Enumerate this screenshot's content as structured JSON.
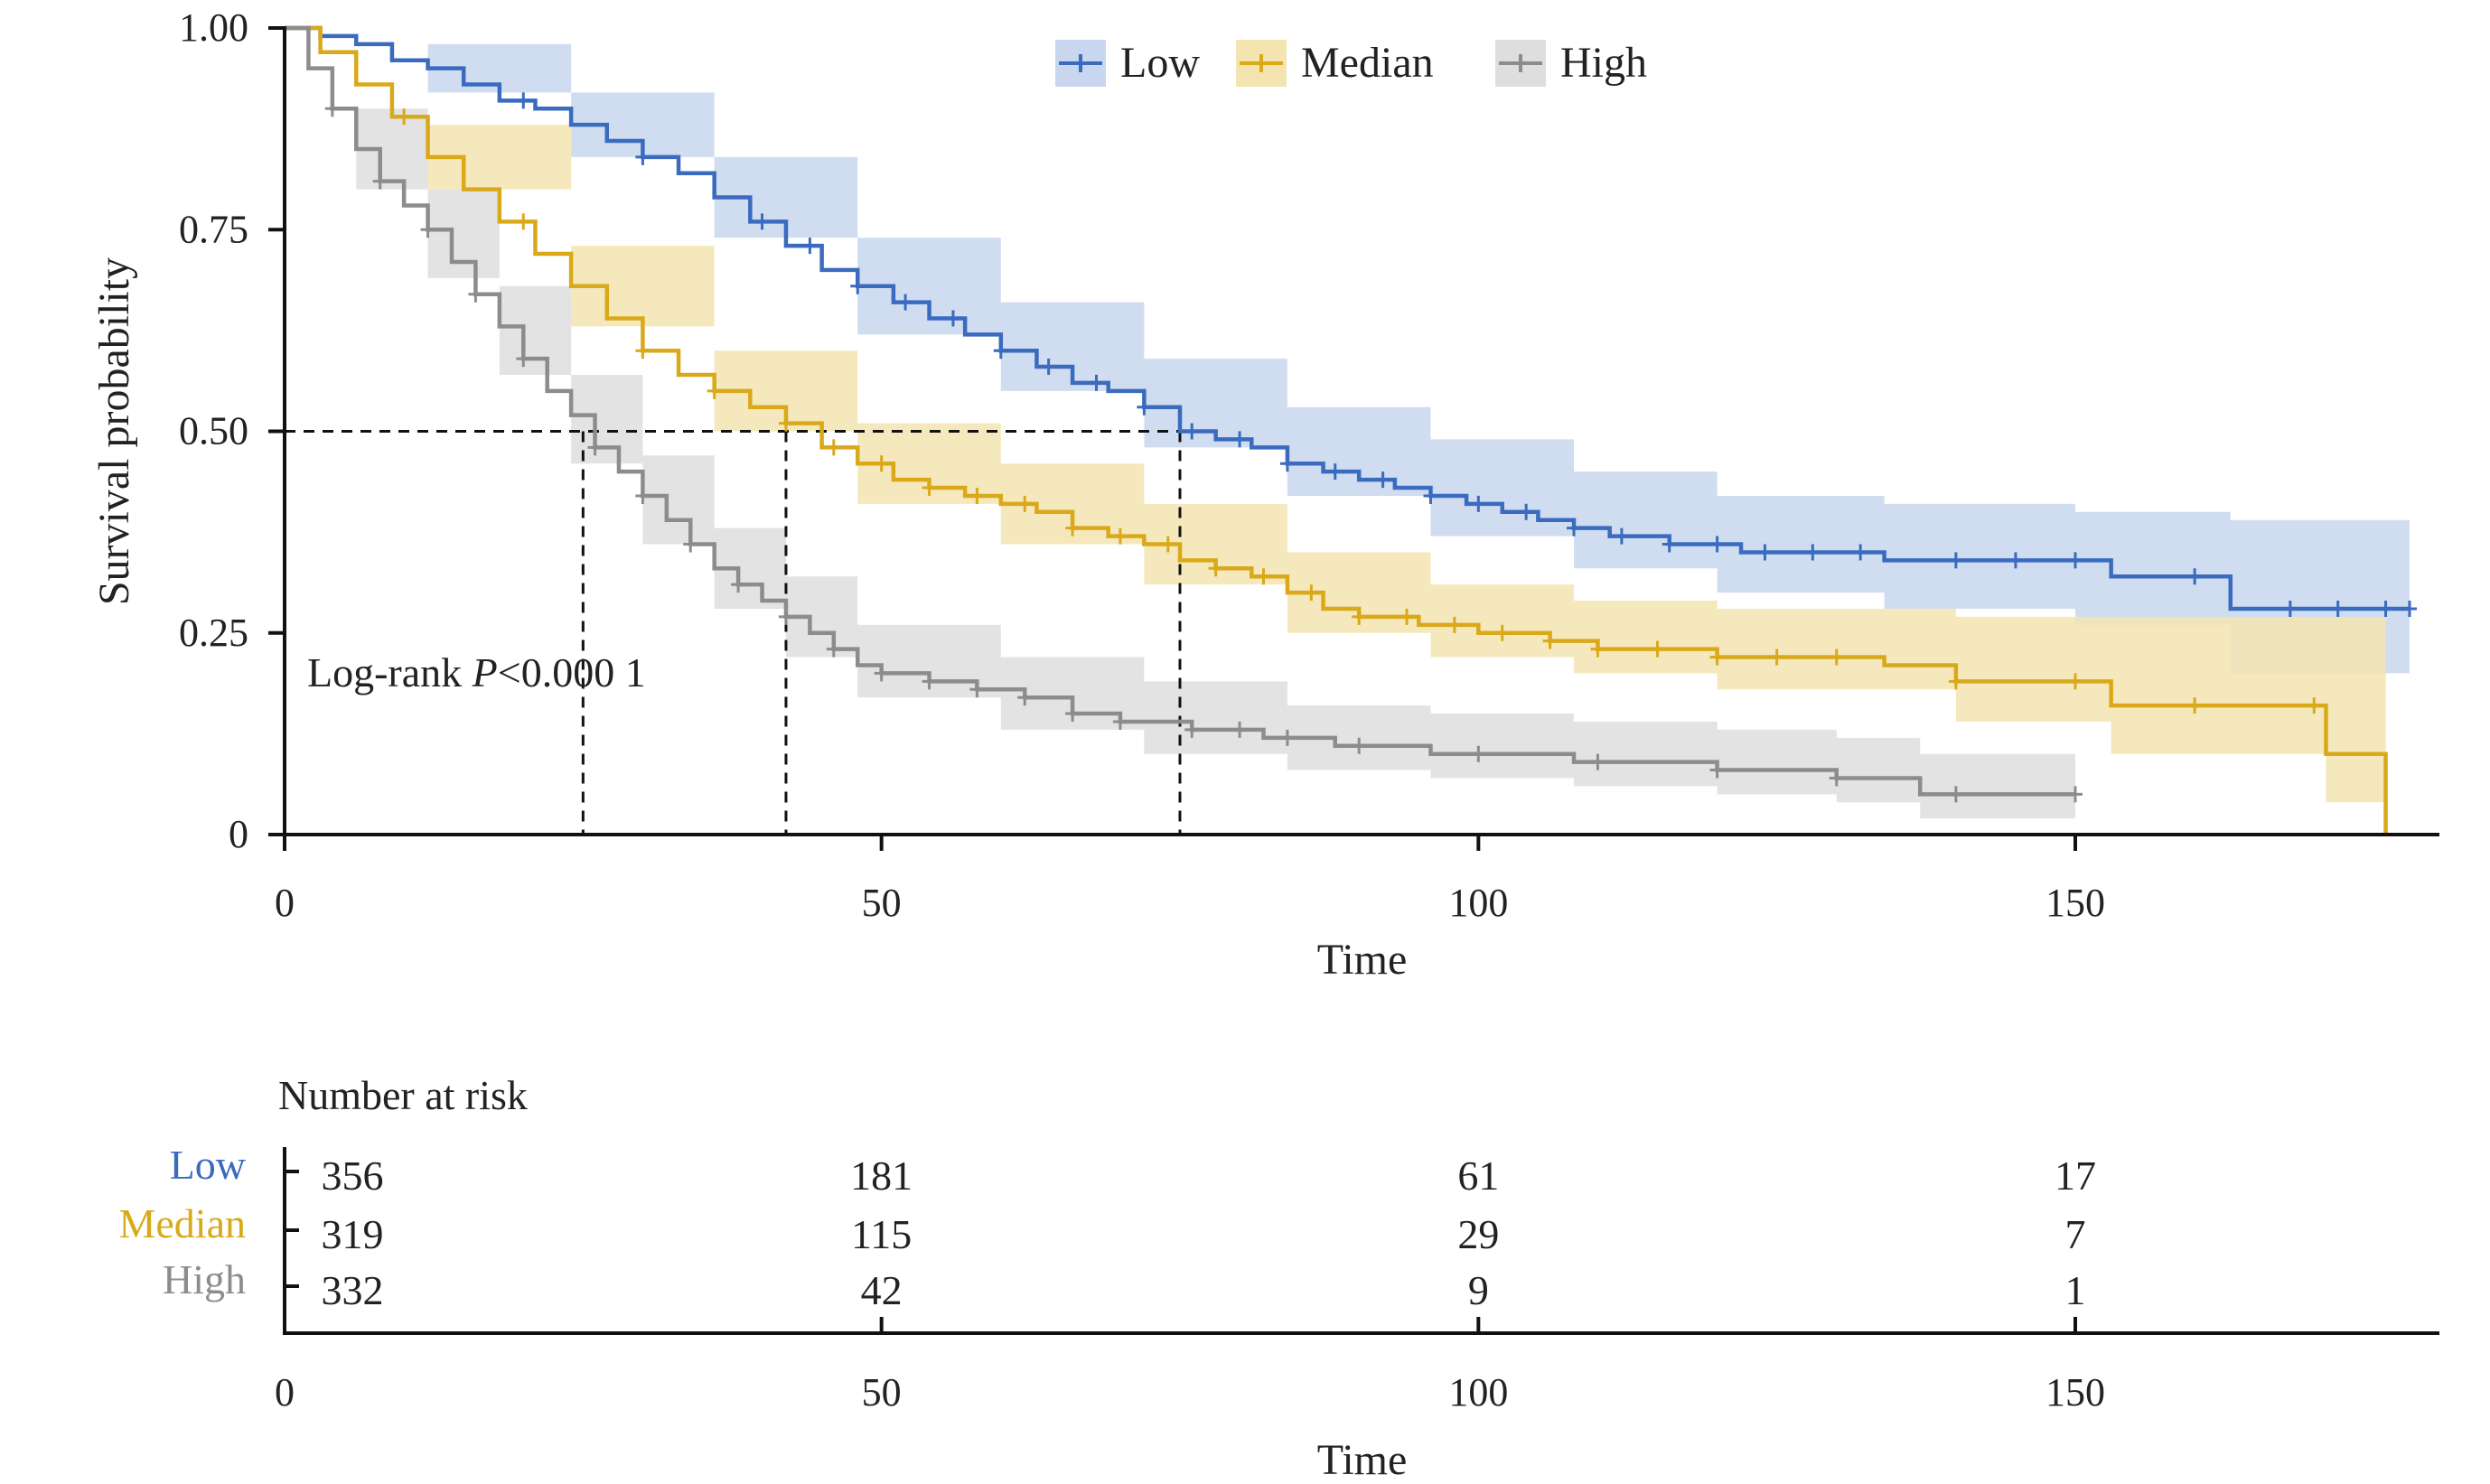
{
  "chart_data": {
    "type": "line",
    "subtype": "kaplan-meier",
    "legend": {
      "placement": "top",
      "entries": [
        {
          "name": "Low",
          "color": "#3a6bbf"
        },
        {
          "name": "Median",
          "color": "#d9a91a"
        },
        {
          "name": "High",
          "color": "#8c8c8c"
        }
      ]
    },
    "ylabel": "Survival probability",
    "xlabel": "Time",
    "xlim": [
      0,
      180
    ],
    "ylim": [
      0,
      1
    ],
    "xticks": [
      0,
      50,
      100,
      150
    ],
    "xtick_labels": [
      "0",
      "50",
      "100",
      "150"
    ],
    "yticks": [
      0,
      0.25,
      0.5,
      0.75,
      1.0
    ],
    "ytick_labels": [
      "0",
      "0.25",
      "0.50",
      "0.75",
      "1.00"
    ],
    "grid": false,
    "annotation": {
      "prefix": "Log-rank ",
      "italic": "P",
      "suffix": "<0.000 1"
    },
    "median_lines": [
      {
        "series": "High",
        "time": 25
      },
      {
        "series": "Median",
        "time": 42
      },
      {
        "series": "Low",
        "time": 75
      }
    ],
    "series": [
      {
        "name": "Low",
        "color": "#3a6bbf",
        "band_color": "#c8d7ef",
        "steps": [
          [
            0,
            1.0
          ],
          [
            3,
            0.99
          ],
          [
            6,
            0.98
          ],
          [
            9,
            0.96
          ],
          [
            12,
            0.95
          ],
          [
            15,
            0.93
          ],
          [
            18,
            0.91
          ],
          [
            21,
            0.9
          ],
          [
            24,
            0.88
          ],
          [
            27,
            0.86
          ],
          [
            30,
            0.84
          ],
          [
            33,
            0.82
          ],
          [
            36,
            0.79
          ],
          [
            39,
            0.76
          ],
          [
            42,
            0.73
          ],
          [
            45,
            0.7
          ],
          [
            48,
            0.68
          ],
          [
            51,
            0.66
          ],
          [
            54,
            0.64
          ],
          [
            57,
            0.62
          ],
          [
            60,
            0.6
          ],
          [
            63,
            0.58
          ],
          [
            66,
            0.56
          ],
          [
            69,
            0.55
          ],
          [
            72,
            0.53
          ],
          [
            75,
            0.5
          ],
          [
            78,
            0.49
          ],
          [
            81,
            0.48
          ],
          [
            84,
            0.46
          ],
          [
            87,
            0.45
          ],
          [
            90,
            0.44
          ],
          [
            93,
            0.43
          ],
          [
            96,
            0.42
          ],
          [
            99,
            0.41
          ],
          [
            102,
            0.4
          ],
          [
            105,
            0.39
          ],
          [
            108,
            0.38
          ],
          [
            111,
            0.37
          ],
          [
            116,
            0.36
          ],
          [
            122,
            0.35
          ],
          [
            134,
            0.34
          ],
          [
            153,
            0.32
          ],
          [
            163,
            0.28
          ],
          [
            178,
            0.28
          ]
        ],
        "ci_lower": [
          [
            0,
            1.0
          ],
          [
            12,
            0.92
          ],
          [
            24,
            0.84
          ],
          [
            36,
            0.74
          ],
          [
            48,
            0.62
          ],
          [
            60,
            0.55
          ],
          [
            72,
            0.48
          ],
          [
            84,
            0.42
          ],
          [
            96,
            0.37
          ],
          [
            108,
            0.33
          ],
          [
            120,
            0.3
          ],
          [
            134,
            0.28
          ],
          [
            150,
            0.26
          ],
          [
            163,
            0.2
          ],
          [
            178,
            0.2
          ]
        ],
        "ci_upper": [
          [
            0,
            1.0
          ],
          [
            12,
            0.98
          ],
          [
            24,
            0.92
          ],
          [
            36,
            0.84
          ],
          [
            48,
            0.74
          ],
          [
            60,
            0.66
          ],
          [
            72,
            0.59
          ],
          [
            84,
            0.53
          ],
          [
            96,
            0.49
          ],
          [
            108,
            0.45
          ],
          [
            120,
            0.42
          ],
          [
            134,
            0.41
          ],
          [
            150,
            0.4
          ],
          [
            163,
            0.39
          ],
          [
            178,
            0.39
          ]
        ],
        "censor_times": [
          20,
          30,
          40,
          44,
          48,
          52,
          56,
          60,
          64,
          68,
          72,
          76,
          80,
          84,
          88,
          92,
          96,
          100,
          104,
          108,
          112,
          116,
          120,
          124,
          128,
          132,
          140,
          145,
          150,
          160,
          168,
          172,
          176,
          178
        ]
      },
      {
        "name": "Median",
        "color": "#d9a91a",
        "band_color": "#f3e4b0",
        "steps": [
          [
            0,
            1.0
          ],
          [
            3,
            0.97
          ],
          [
            6,
            0.93
          ],
          [
            9,
            0.89
          ],
          [
            12,
            0.84
          ],
          [
            15,
            0.8
          ],
          [
            18,
            0.76
          ],
          [
            21,
            0.72
          ],
          [
            24,
            0.68
          ],
          [
            27,
            0.64
          ],
          [
            30,
            0.6
          ],
          [
            33,
            0.57
          ],
          [
            36,
            0.55
          ],
          [
            39,
            0.53
          ],
          [
            42,
            0.51
          ],
          [
            45,
            0.48
          ],
          [
            48,
            0.46
          ],
          [
            51,
            0.44
          ],
          [
            54,
            0.43
          ],
          [
            57,
            0.42
          ],
          [
            60,
            0.41
          ],
          [
            63,
            0.4
          ],
          [
            66,
            0.38
          ],
          [
            69,
            0.37
          ],
          [
            72,
            0.36
          ],
          [
            75,
            0.34
          ],
          [
            78,
            0.33
          ],
          [
            81,
            0.32
          ],
          [
            84,
            0.3
          ],
          [
            87,
            0.28
          ],
          [
            90,
            0.27
          ],
          [
            95,
            0.26
          ],
          [
            100,
            0.25
          ],
          [
            106,
            0.24
          ],
          [
            110,
            0.23
          ],
          [
            120,
            0.22
          ],
          [
            134,
            0.21
          ],
          [
            140,
            0.19
          ],
          [
            153,
            0.16
          ],
          [
            171,
            0.1
          ],
          [
            176,
            0.0
          ]
        ],
        "ci_lower": [
          [
            0,
            1.0
          ],
          [
            12,
            0.8
          ],
          [
            24,
            0.63
          ],
          [
            36,
            0.5
          ],
          [
            48,
            0.41
          ],
          [
            60,
            0.36
          ],
          [
            72,
            0.31
          ],
          [
            84,
            0.25
          ],
          [
            96,
            0.22
          ],
          [
            108,
            0.2
          ],
          [
            120,
            0.18
          ],
          [
            140,
            0.14
          ],
          [
            153,
            0.1
          ],
          [
            171,
            0.04
          ],
          [
            176,
            0.0
          ]
        ],
        "ci_upper": [
          [
            0,
            1.0
          ],
          [
            12,
            0.88
          ],
          [
            24,
            0.73
          ],
          [
            36,
            0.6
          ],
          [
            48,
            0.51
          ],
          [
            60,
            0.46
          ],
          [
            72,
            0.41
          ],
          [
            84,
            0.35
          ],
          [
            96,
            0.31
          ],
          [
            108,
            0.29
          ],
          [
            120,
            0.28
          ],
          [
            140,
            0.27
          ],
          [
            153,
            0.27
          ],
          [
            171,
            0.27
          ],
          [
            176,
            0.27
          ]
        ],
        "censor_times": [
          10,
          20,
          30,
          36,
          42,
          46,
          50,
          54,
          58,
          62,
          66,
          70,
          74,
          78,
          82,
          86,
          90,
          94,
          98,
          102,
          106,
          110,
          115,
          120,
          125,
          130,
          140,
          150,
          160,
          170
        ]
      },
      {
        "name": "High",
        "color": "#8c8c8c",
        "band_color": "#dedede",
        "steps": [
          [
            0,
            1.0
          ],
          [
            2,
            0.95
          ],
          [
            4,
            0.9
          ],
          [
            6,
            0.85
          ],
          [
            8,
            0.81
          ],
          [
            10,
            0.78
          ],
          [
            12,
            0.75
          ],
          [
            14,
            0.71
          ],
          [
            16,
            0.67
          ],
          [
            18,
            0.63
          ],
          [
            20,
            0.59
          ],
          [
            22,
            0.55
          ],
          [
            24,
            0.52
          ],
          [
            26,
            0.48
          ],
          [
            28,
            0.45
          ],
          [
            30,
            0.42
          ],
          [
            32,
            0.39
          ],
          [
            34,
            0.36
          ],
          [
            36,
            0.33
          ],
          [
            38,
            0.31
          ],
          [
            40,
            0.29
          ],
          [
            42,
            0.27
          ],
          [
            44,
            0.25
          ],
          [
            46,
            0.23
          ],
          [
            48,
            0.21
          ],
          [
            50,
            0.2
          ],
          [
            54,
            0.19
          ],
          [
            58,
            0.18
          ],
          [
            62,
            0.17
          ],
          [
            66,
            0.15
          ],
          [
            70,
            0.14
          ],
          [
            76,
            0.13
          ],
          [
            82,
            0.12
          ],
          [
            88,
            0.11
          ],
          [
            96,
            0.1
          ],
          [
            108,
            0.09
          ],
          [
            120,
            0.08
          ],
          [
            130,
            0.07
          ],
          [
            137,
            0.05
          ],
          [
            150,
            0.05
          ]
        ],
        "ci_lower": [
          [
            0,
            1.0
          ],
          [
            6,
            0.8
          ],
          [
            12,
            0.69
          ],
          [
            18,
            0.57
          ],
          [
            24,
            0.46
          ],
          [
            30,
            0.36
          ],
          [
            36,
            0.28
          ],
          [
            42,
            0.22
          ],
          [
            48,
            0.17
          ],
          [
            60,
            0.13
          ],
          [
            72,
            0.1
          ],
          [
            84,
            0.08
          ],
          [
            96,
            0.07
          ],
          [
            108,
            0.06
          ],
          [
            120,
            0.05
          ],
          [
            130,
            0.04
          ],
          [
            137,
            0.02
          ],
          [
            150,
            0.02
          ]
        ],
        "ci_upper": [
          [
            0,
            1.0
          ],
          [
            6,
            0.9
          ],
          [
            12,
            0.8
          ],
          [
            18,
            0.68
          ],
          [
            24,
            0.57
          ],
          [
            30,
            0.47
          ],
          [
            36,
            0.38
          ],
          [
            42,
            0.32
          ],
          [
            48,
            0.26
          ],
          [
            60,
            0.22
          ],
          [
            72,
            0.19
          ],
          [
            84,
            0.16
          ],
          [
            96,
            0.15
          ],
          [
            108,
            0.14
          ],
          [
            120,
            0.13
          ],
          [
            130,
            0.12
          ],
          [
            137,
            0.1
          ],
          [
            150,
            0.1
          ]
        ],
        "censor_times": [
          4,
          8,
          12,
          16,
          20,
          26,
          30,
          34,
          38,
          42,
          46,
          50,
          54,
          58,
          62,
          66,
          70,
          76,
          80,
          84,
          90,
          100,
          110,
          120,
          130,
          140,
          150
        ]
      }
    ],
    "risk_table": {
      "title": "Number at risk",
      "xlabel": "Time",
      "times": [
        0,
        50,
        100,
        150
      ],
      "time_labels": [
        "0",
        "50",
        "100",
        "150"
      ],
      "rows": [
        {
          "name": "Low",
          "color": "#3a6bbf",
          "counts": [
            "356",
            "181",
            "61",
            "17"
          ]
        },
        {
          "name": "Median",
          "color": "#d9a91a",
          "counts": [
            "319",
            "115",
            "29",
            "7"
          ]
        },
        {
          "name": "High",
          "color": "#8c8c8c",
          "counts": [
            "332",
            "42",
            "9",
            "1"
          ]
        }
      ]
    }
  }
}
